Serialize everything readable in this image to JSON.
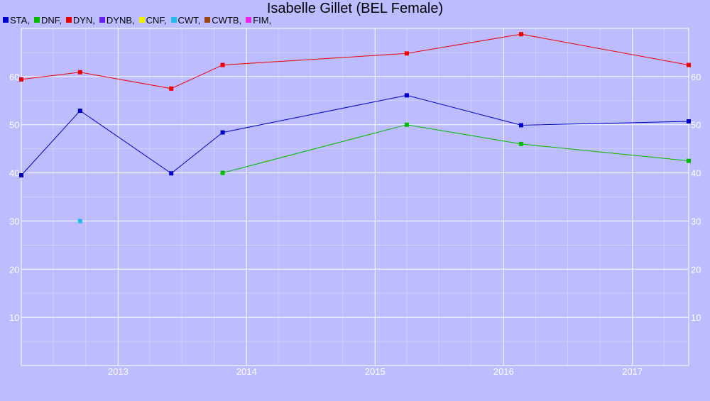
{
  "chart_data": {
    "type": "line",
    "title": "Isabelle Gillet (BEL Female)",
    "xlabel": "",
    "ylabel": "",
    "xlim": [
      "2012-04-01",
      "2017-06-10"
    ],
    "ylim": [
      0,
      70
    ],
    "x_ticks": [
      "2013",
      "2014",
      "2015",
      "2016",
      "2017"
    ],
    "y_ticks": [
      10,
      20,
      30,
      40,
      50,
      60
    ],
    "grid": true,
    "legend_position": "top-left",
    "legend": [
      {
        "name": "STA",
        "color": "#0000cc"
      },
      {
        "name": "DNF",
        "color": "#00bb00"
      },
      {
        "name": "DYN",
        "color": "#ee0000"
      },
      {
        "name": "DYNB",
        "color": "#6622ee"
      },
      {
        "name": "CNF",
        "color": "#eeee00"
      },
      {
        "name": "CWT",
        "color": "#22bbee"
      },
      {
        "name": "CWTB",
        "color": "#994411"
      },
      {
        "name": "FIM",
        "color": "#ee22ee"
      }
    ],
    "series": [
      {
        "name": "STA",
        "color": "#0000cc",
        "points": [
          {
            "x": "2012-04-01",
            "y": 39.5
          },
          {
            "x": "2012-09-15",
            "y": 52.9
          },
          {
            "x": "2013-06-01",
            "y": 39.9
          },
          {
            "x": "2013-10-25",
            "y": 48.4
          },
          {
            "x": "2015-04-01",
            "y": 56.1
          },
          {
            "x": "2016-02-20",
            "y": 49.9
          },
          {
            "x": "2017-06-10",
            "y": 50.7
          }
        ]
      },
      {
        "name": "DNF",
        "color": "#00bb00",
        "points": [
          {
            "x": "2013-10-25",
            "y": 40.0
          },
          {
            "x": "2015-04-01",
            "y": 50.0
          },
          {
            "x": "2016-02-20",
            "y": 46.0
          },
          {
            "x": "2017-06-10",
            "y": 42.5
          }
        ]
      },
      {
        "name": "DYN",
        "color": "#ee0000",
        "points": [
          {
            "x": "2012-04-01",
            "y": 59.4
          },
          {
            "x": "2012-09-15",
            "y": 60.9
          },
          {
            "x": "2013-06-01",
            "y": 57.5
          },
          {
            "x": "2013-10-25",
            "y": 62.4
          },
          {
            "x": "2015-04-01",
            "y": 64.8
          },
          {
            "x": "2016-02-20",
            "y": 68.8
          },
          {
            "x": "2017-06-10",
            "y": 62.4
          }
        ]
      },
      {
        "name": "CWT",
        "color": "#22bbee",
        "points": [
          {
            "x": "2012-09-15",
            "y": 30.0
          }
        ]
      }
    ]
  }
}
